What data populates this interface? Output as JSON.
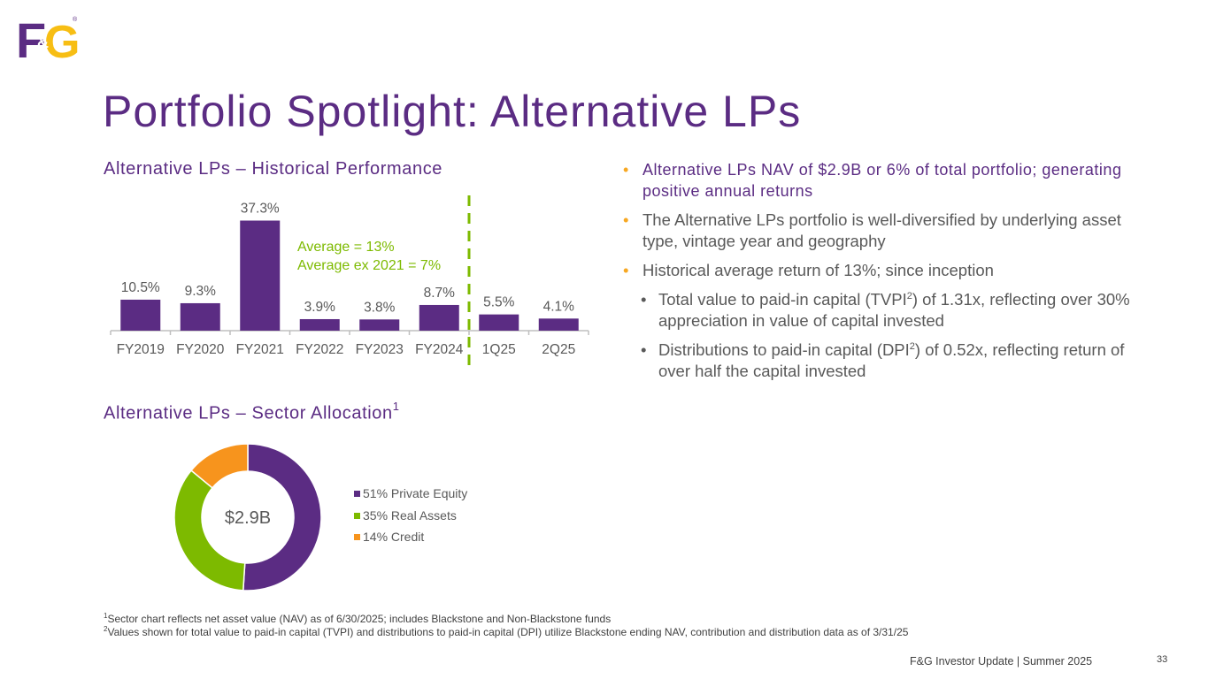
{
  "logo": {
    "text_primary": "F",
    "text_secondary": "G",
    "ampersand": "&",
    "mark": "®",
    "colors": {
      "purple": "#5B2C83",
      "gold": "#F7BE14"
    }
  },
  "title": "Portfolio Spotlight:  Alternative LPs",
  "colors": {
    "purple": "#5B2C83",
    "green": "#7DBA00",
    "orange": "#F7941D",
    "bullet": "#F7A823",
    "grey": "#595959"
  },
  "bar_section": {
    "heading": "Alternative LPs – Historical Performance"
  },
  "sector_section": {
    "heading": "Alternative LPs – Sector Allocation",
    "heading_sup": "1"
  },
  "chart_data": [
    {
      "type": "bar",
      "title": "Alternative LPs – Historical Performance",
      "categories": [
        "FY2019",
        "FY2020",
        "FY2021",
        "FY2022",
        "FY2023",
        "FY2024",
        "1Q25",
        "2Q25"
      ],
      "values": [
        10.5,
        9.3,
        37.3,
        3.9,
        3.8,
        8.7,
        5.5,
        4.1
      ],
      "data_labels": [
        "10.5%",
        "9.3%",
        "37.3%",
        "3.9%",
        "3.8%",
        "8.7%",
        "5.5%",
        "4.1%"
      ],
      "annotations": [
        "Average = 13%",
        "Average ex 2021 = 7%"
      ],
      "divider_after": "FY2024",
      "ylim": [
        0,
        40
      ],
      "xlabel": "",
      "ylabel": ""
    },
    {
      "type": "pie",
      "title": "Alternative LPs – Sector Allocation",
      "center_label": "$2.9B",
      "categories": [
        "Private Equity",
        "Real Assets",
        "Credit"
      ],
      "values": [
        51,
        35,
        14
      ],
      "legend": [
        "51% Private Equity",
        "35% Real Assets",
        "14% Credit"
      ],
      "colors": [
        "#5B2C83",
        "#7DBA00",
        "#F7941D"
      ]
    }
  ],
  "bullets": {
    "lead": "Alternative LPs NAV of $2.9B or 6% of total portfolio; generating positive annual returns",
    "b1": "The Alternative LPs portfolio is well-diversified by underlying asset type, vintage year and geography",
    "b2": "Historical average return of 13%; since inception",
    "sub1_a": "Total value to paid-in capital (TVPI",
    "sub1_sup": "2",
    "sub1_b": ") of 1.31x, reflecting over 30% appreciation in value of capital invested",
    "sub2_a": "Distributions to paid-in capital (DPI",
    "sub2_sup": "2",
    "sub2_b": ") of 0.52x, reflecting return of over half the capital invested"
  },
  "footnotes": {
    "n1_sup": "1",
    "n1": "Sector chart reflects net asset value (NAV) as of 6/30/2025; includes Blackstone and Non-Blackstone funds",
    "n2_sup": "2",
    "n2": "Values shown for total value to paid-in capital (TVPI) and distributions to paid-in capital (DPI) utilize Blackstone ending NAV, contribution and distribution data as of 3/31/25"
  },
  "footer": {
    "text": "F&G Investor Update |  Summer 2025",
    "page": "33"
  }
}
